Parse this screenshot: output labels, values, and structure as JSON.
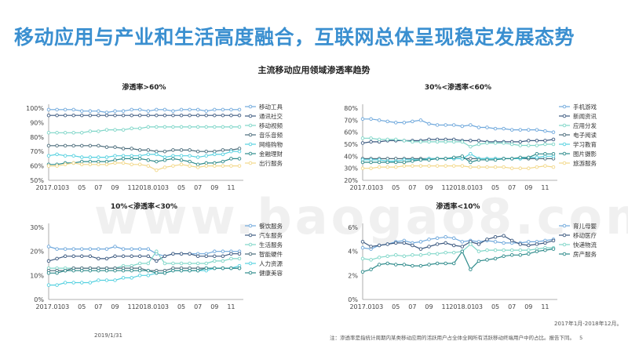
{
  "slide": {
    "title": "移动应用与产业和生活高度融合，互联网总体呈现稳定发展态势",
    "main_title": "主流移动应用领域渗透率趋势",
    "date": "2019/1/31",
    "range_note": "2017年1月-2018年12月。",
    "footnote": "注：渗透率是指统计周期内某类移动应用的活跃用户占全体全网所有活跃移动终端用户中的占比。报告下同。",
    "page": "5",
    "watermark": "www.baogao8.com"
  },
  "colors": {
    "title": "#3a8fd0",
    "s1": "#6fa8dc",
    "s2": "#3d5a80",
    "s3": "#7fd6c8",
    "s4": "#4a6b7a",
    "s5": "#56d1e0",
    "s6": "#2e8b8b",
    "s7": "#f2d88a"
  },
  "chart_data": [
    {
      "type": "line",
      "title": "渗透率>60%",
      "x_ticks": [
        "2017.01",
        "03",
        "05",
        "07",
        "09",
        "11",
        "2018.01",
        "03",
        "05",
        "07",
        "09",
        "11"
      ],
      "y_ticks": [
        "50%",
        "60%",
        "70%",
        "80%",
        "90%",
        "100%"
      ],
      "ylim": [
        50,
        100
      ],
      "series": [
        {
          "name": "移动工具",
          "color": "#6fa8dc",
          "values": [
            99,
            99,
            99,
            99,
            98,
            98,
            98,
            97,
            98,
            98,
            99,
            99,
            98,
            99,
            99,
            98,
            99,
            99,
            99,
            98,
            99,
            99,
            99,
            99
          ]
        },
        {
          "name": "通讯社交",
          "color": "#3d5a80",
          "values": [
            95,
            95,
            95,
            95,
            95,
            95,
            95,
            95,
            95,
            95,
            95,
            95,
            95,
            95,
            95,
            95,
            95,
            95,
            95,
            95,
            95,
            95,
            95,
            95
          ]
        },
        {
          "name": "移动视频",
          "color": "#7fd6c8",
          "values": [
            83,
            83,
            83,
            83,
            83,
            84,
            84,
            85,
            85,
            85,
            86,
            86,
            87,
            87,
            87,
            87,
            87,
            87,
            87,
            87,
            87,
            87,
            87,
            87
          ]
        },
        {
          "name": "音乐音频",
          "color": "#4a6b7a",
          "values": [
            74,
            74,
            74,
            74,
            74,
            74,
            74,
            73,
            73,
            72,
            72,
            71,
            71,
            70,
            70,
            71,
            71,
            71,
            70,
            70,
            70,
            71,
            71,
            72
          ]
        },
        {
          "name": "网络购物",
          "color": "#56d1e0",
          "values": [
            67,
            68,
            67,
            67,
            66,
            66,
            66,
            66,
            67,
            67,
            67,
            67,
            68,
            68,
            66,
            67,
            67,
            67,
            66,
            67,
            68,
            68,
            70,
            70
          ]
        },
        {
          "name": "金融理财",
          "color": "#2e8b8b",
          "values": [
            61,
            61,
            62,
            62,
            63,
            63,
            63,
            63,
            64,
            65,
            65,
            65,
            64,
            63,
            64,
            65,
            64,
            63,
            61,
            62,
            62,
            63,
            65,
            65
          ]
        },
        {
          "name": "出行服务",
          "color": "#f2d88a",
          "values": [
            60,
            60,
            61,
            62,
            61,
            61,
            61,
            61,
            62,
            62,
            61,
            61,
            60,
            57,
            59,
            60,
            61,
            60,
            59,
            60,
            60,
            60,
            60,
            60
          ]
        }
      ]
    },
    {
      "type": "line",
      "title": "30%<渗透率<60%",
      "x_ticks": [
        "2017.01",
        "03",
        "05",
        "07",
        "09",
        "11",
        "2018.01",
        "03",
        "05",
        "07",
        "09",
        "11"
      ],
      "y_ticks": [
        "20%",
        "30%",
        "40%",
        "50%",
        "60%",
        "70%",
        "80%"
      ],
      "ylim": [
        20,
        80
      ],
      "series": [
        {
          "name": "手机游戏",
          "color": "#6fa8dc",
          "values": [
            71,
            71,
            70,
            69,
            68,
            68,
            69,
            70,
            67,
            66,
            66,
            66,
            65,
            66,
            64,
            64,
            63,
            63,
            62,
            62,
            62,
            62,
            61,
            60
          ]
        },
        {
          "name": "新闻资讯",
          "color": "#3d5a80",
          "values": [
            51,
            52,
            52,
            53,
            53,
            53,
            53,
            53,
            54,
            54,
            54,
            54,
            53,
            53,
            53,
            52,
            52,
            52,
            52,
            52,
            53,
            53,
            53,
            54
          ]
        },
        {
          "name": "应用分发",
          "color": "#7fd6c8",
          "values": [
            55,
            55,
            54,
            54,
            54,
            53,
            52,
            52,
            52,
            52,
            52,
            52,
            52,
            48,
            50,
            51,
            51,
            51,
            50,
            49,
            49,
            49,
            50,
            50
          ]
        },
        {
          "name": "电子阅读",
          "color": "#4a6b7a",
          "values": [
            38,
            38,
            38,
            38,
            38,
            38,
            38,
            38,
            38,
            38,
            38,
            38,
            38,
            38,
            38,
            38,
            38,
            38,
            38,
            38,
            38,
            38,
            38,
            38
          ]
        },
        {
          "name": "学习教育",
          "color": "#56d1e0",
          "values": [
            37,
            37,
            37,
            36,
            36,
            37,
            37,
            37,
            38,
            38,
            38,
            38,
            38,
            42,
            38,
            38,
            38,
            38,
            38,
            38,
            39,
            39,
            40,
            40
          ]
        },
        {
          "name": "图片摄影",
          "color": "#2e8b8b",
          "values": [
            35,
            35,
            35,
            35,
            35,
            35,
            36,
            37,
            37,
            38,
            38,
            39,
            40,
            35,
            37,
            37,
            37,
            38,
            38,
            39,
            39,
            42,
            42,
            42
          ]
        },
        {
          "name": "旅游服务",
          "color": "#f2d88a",
          "values": [
            30,
            30,
            31,
            31,
            31,
            32,
            32,
            32,
            32,
            32,
            32,
            32,
            32,
            31,
            31,
            31,
            31,
            31,
            30,
            30,
            30,
            31,
            32,
            31
          ]
        }
      ]
    },
    {
      "type": "line",
      "title": "10%<渗透率<30%",
      "x_ticks": [
        "2017.01",
        "03",
        "05",
        "07",
        "09",
        "11",
        "2018.01",
        "03",
        "05",
        "07",
        "09",
        "11"
      ],
      "y_ticks": [
        "0%",
        "10%",
        "20%",
        "30%"
      ],
      "ylim": [
        0,
        30
      ],
      "series": [
        {
          "name": "餐饮服务",
          "color": "#6fa8dc",
          "values": [
            22,
            21,
            21,
            21,
            21,
            21,
            21,
            21,
            22,
            21,
            21,
            21,
            21,
            19,
            18,
            19,
            19,
            19,
            19,
            19,
            20,
            20,
            20,
            20
          ]
        },
        {
          "name": "汽车服务",
          "color": "#3d5a80",
          "values": [
            16,
            17,
            18,
            18,
            18,
            18,
            17,
            17,
            18,
            18,
            18,
            18,
            18,
            16,
            18,
            19,
            19,
            19,
            18,
            18,
            18,
            18,
            19,
            19
          ]
        },
        {
          "name": "生活服务",
          "color": "#7fd6c8",
          "values": [
            13,
            13,
            13,
            13,
            13,
            13,
            13,
            13,
            13,
            14,
            14,
            15,
            15,
            20,
            15,
            15,
            15,
            15,
            15,
            15,
            16,
            16,
            17,
            17
          ]
        },
        {
          "name": "智能硬件",
          "color": "#4a6b7a",
          "values": [
            12,
            12,
            12,
            13,
            13,
            13,
            13,
            13,
            13,
            13,
            13,
            13,
            12,
            12,
            12,
            13,
            13,
            13,
            13,
            13,
            13,
            13,
            13,
            13
          ]
        },
        {
          "name": "人力资源",
          "color": "#56d1e0",
          "values": [
            6,
            6,
            7,
            7,
            7,
            7,
            8,
            8,
            8,
            9,
            9,
            10,
            10,
            11,
            11,
            12,
            12,
            12,
            12,
            12,
            13,
            13,
            13,
            14
          ]
        },
        {
          "name": "健康美容",
          "color": "#2e8b8b",
          "values": [
            11,
            11,
            12,
            12,
            12,
            12,
            12,
            12,
            12,
            12,
            12,
            12,
            12,
            11,
            11,
            12,
            12,
            12,
            12,
            13,
            13,
            13,
            13,
            13
          ]
        }
      ]
    },
    {
      "type": "line",
      "title": "渗透率<10%",
      "x_ticks": [
        "2017.01",
        "03",
        "05",
        "07",
        "09",
        "11",
        "2018.01",
        "03",
        "05",
        "07",
        "09",
        "11"
      ],
      "y_ticks": [
        "0%",
        "2%",
        "4%",
        "6%"
      ],
      "ylim": [
        0,
        6
      ],
      "series": [
        {
          "name": "育儿母婴",
          "color": "#6fa8dc",
          "values": [
            4.3,
            4.2,
            4.5,
            4.6,
            4.8,
            4.9,
            4.7,
            4.8,
            5.0,
            5.1,
            5.2,
            5.1,
            4.8,
            4.9,
            4.8,
            4.9,
            4.8,
            4.7,
            4.7,
            4.7,
            4.8,
            4.8,
            4.9,
            5.0
          ]
        },
        {
          "name": "移动医疗",
          "color": "#3d5a80",
          "values": [
            4.8,
            4.4,
            4.5,
            4.6,
            4.7,
            4.7,
            4.5,
            4.2,
            4.4,
            4.6,
            4.7,
            4.5,
            4.4,
            4.8,
            4.6,
            5.0,
            5.2,
            5.3,
            4.9,
            4.6,
            4.5,
            4.6,
            4.7,
            4.9
          ]
        },
        {
          "name": "快递物流",
          "color": "#7fd6c8",
          "values": [
            3.4,
            3.3,
            3.5,
            3.6,
            3.7,
            3.6,
            3.7,
            3.7,
            3.8,
            3.8,
            3.9,
            3.9,
            4.0,
            4.6,
            4.0,
            4.1,
            4.1,
            4.1,
            4.1,
            4.1,
            4.1,
            4.2,
            4.3,
            4.3
          ]
        },
        {
          "name": "房产服务",
          "color": "#2e8b8b",
          "values": [
            2.3,
            2.5,
            2.9,
            3.0,
            2.9,
            2.9,
            2.8,
            2.8,
            2.9,
            3.0,
            3.0,
            3.0,
            4.0,
            2.5,
            3.2,
            3.3,
            3.4,
            3.6,
            3.7,
            3.7,
            3.8,
            4.0,
            4.1,
            4.2
          ]
        }
      ]
    }
  ]
}
